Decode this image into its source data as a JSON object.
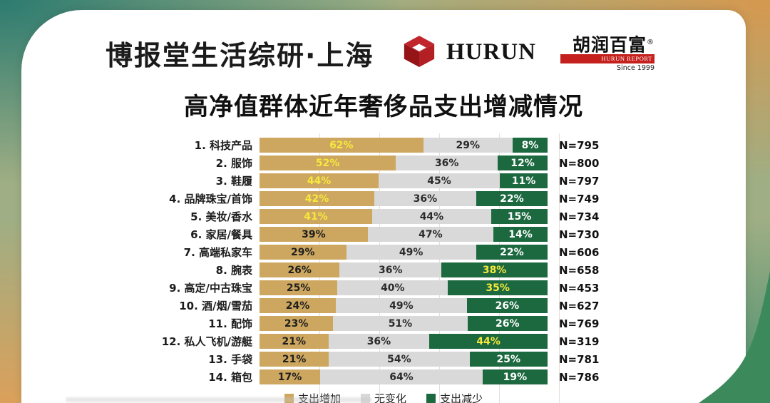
{
  "header": {
    "brand_title": "博报堂生活综研·上海",
    "hurun_wordmark": "HURUN",
    "hurun_report": {
      "cn": "胡润百富",
      "reg": "®",
      "band": "HURUN REPORT",
      "since": "Since 1999",
      "red": "#c4201d"
    }
  },
  "title": "高净值群体近年奢侈品支出增减情况",
  "chart_data": {
    "type": "bar",
    "orientation": "horizontal-stacked",
    "title": "高净值群体近年奢侈品支出增减情况",
    "unit": "%",
    "grid": "faint vertical lines at 20/40/60/80/100",
    "legend_position": "bottom",
    "categories": [
      "1. 科技产品",
      "2. 服饰",
      "3. 鞋履",
      "4. 品牌珠宝/首饰",
      "5. 美妆/香水",
      "6. 家居/餐具",
      "7. 高端私家车",
      "8. 腕表",
      "9. 高定/中古珠宝",
      "10. 酒/烟/雪茄",
      "11. 配饰",
      "12. 私人飞机/游艇",
      "13. 手袋",
      "14. 箱包"
    ],
    "series": [
      {
        "name": "支出增加",
        "color": "#cda75f",
        "values": [
          62,
          52,
          44,
          42,
          41,
          39,
          29,
          26,
          25,
          24,
          23,
          21,
          21,
          17
        ]
      },
      {
        "name": "无变化",
        "color": "#d9d9d9",
        "values": [
          29,
          36,
          45,
          36,
          44,
          47,
          49,
          36,
          40,
          49,
          51,
          36,
          54,
          64
        ]
      },
      {
        "name": "支出减少",
        "color": "#1c6940",
        "values": [
          8,
          12,
          11,
          22,
          15,
          14,
          22,
          38,
          35,
          26,
          26,
          44,
          25,
          19
        ]
      }
    ],
    "n_labels": [
      "N=795",
      "N=800",
      "N=797",
      "N=749",
      "N=734",
      "N=730",
      "N=606",
      "N=658",
      "N=453",
      "N=627",
      "N=769",
      "N=319",
      "N=781",
      "N=786"
    ],
    "highlight_yellow": {
      "color": "#f6e83c",
      "increase_rows": [
        0,
        1,
        2,
        3,
        4
      ],
      "decrease_rows": [
        7,
        8,
        11
      ]
    }
  },
  "theme": {
    "bg_top_left": "#2c7b70",
    "bg_top_right": "#d6984f",
    "bg_bottom_left": "#dba05a",
    "bg_bottom_right_wave": "#3c8a5c",
    "card": "#ffffff"
  }
}
